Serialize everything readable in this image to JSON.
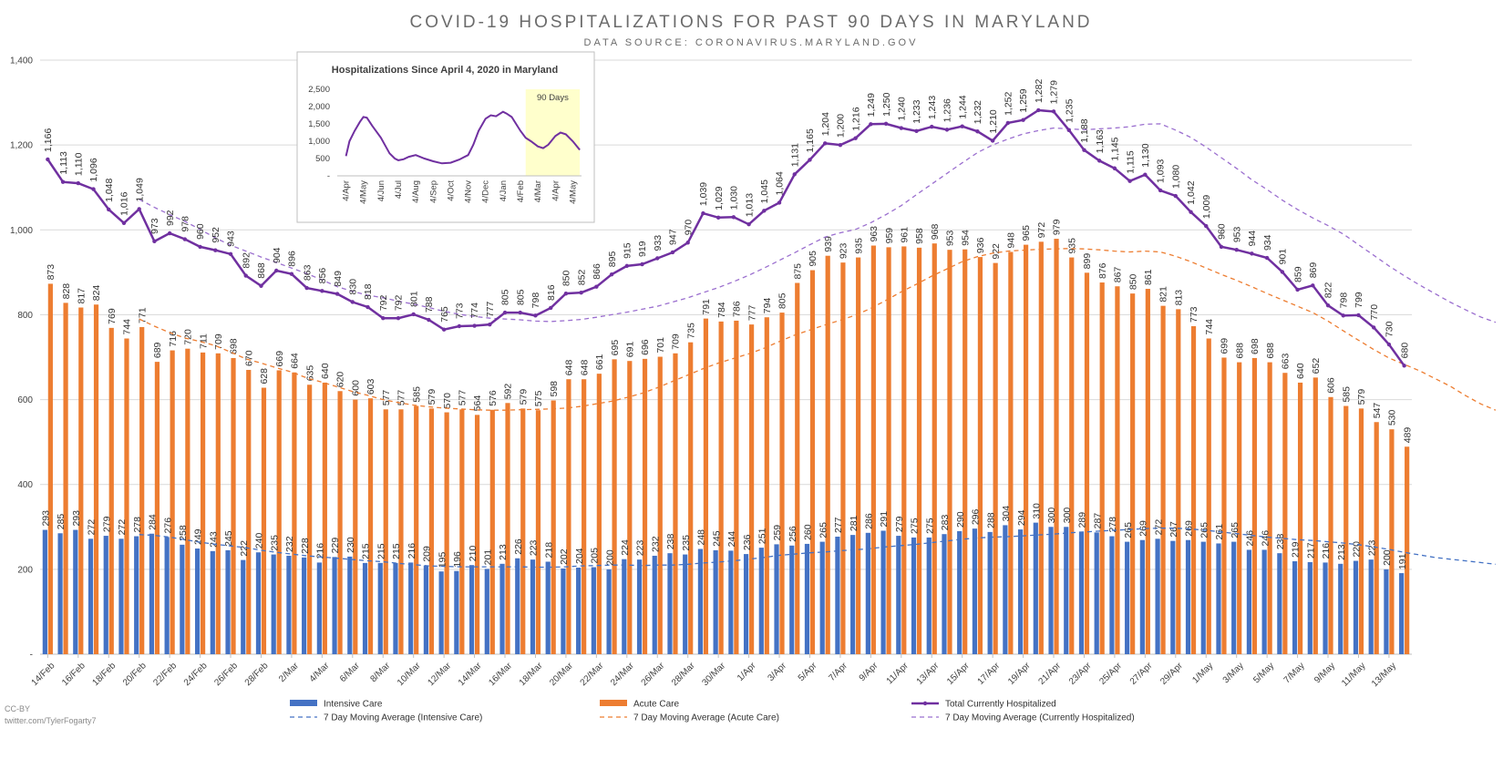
{
  "title": "COVID-19 HOSPITALIZATIONS FOR PAST 90 DAYS IN MARYLAND",
  "subtitle": "DATA SOURCE: CORONAVIRUS.MARYLAND.GOV",
  "credit_line1": "CC-BY",
  "credit_line2": "twitter.com/TylerFogarty7",
  "colors": {
    "intensive": "#4472C4",
    "acute": "#ED7D31",
    "total": "#7030A0",
    "total_ma": "#9B6FCF",
    "grid": "#d9d9d9"
  },
  "legend": [
    {
      "label": "Intensive Care",
      "kind": "bar",
      "color": "#4472C4"
    },
    {
      "label": "Acute Care",
      "kind": "bar",
      "color": "#ED7D31"
    },
    {
      "label": "Total Currently Hospitalized",
      "kind": "line-marker",
      "color": "#7030A0"
    },
    {
      "label": "7 Day Moving Average (Intensive Care)",
      "kind": "dash",
      "color": "#4472C4"
    },
    {
      "label": "7 Day Moving Average (Acute Care)",
      "kind": "dash",
      "color": "#ED7D31"
    },
    {
      "label": "7 Day Moving Average (Currently Hospitalized)",
      "kind": "dash",
      "color": "#9B6FCF"
    }
  ],
  "chart_data": [
    {
      "type": "bar",
      "title": "COVID-19 HOSPITALIZATIONS FOR PAST 90 DAYS IN MARYLAND",
      "subtitle": "DATA SOURCE: CORONAVIRUS.MARYLAND.GOV",
      "xlabel": "",
      "ylabel": "",
      "ylim": [
        0,
        1400
      ],
      "yticks": [
        0,
        200,
        400,
        600,
        800,
        1000,
        1200,
        1400
      ],
      "ytick_labels": [
        "-",
        "200",
        "400",
        "600",
        "800",
        "1,000",
        "1,200",
        "1,400"
      ],
      "grid": true,
      "legend_position": "bottom",
      "x_tick_labels": [
        "14/Feb",
        "16/Feb",
        "18/Feb",
        "20/Feb",
        "22/Feb",
        "24/Feb",
        "26/Feb",
        "28/Feb",
        "2/Mar",
        "4/Mar",
        "6/Mar",
        "8/Mar",
        "10/Mar",
        "12/Mar",
        "14/Mar",
        "16/Mar",
        "18/Mar",
        "20/Mar",
        "22/Mar",
        "24/Mar",
        "26/Mar",
        "28/Mar",
        "30/Mar",
        "1/Apr",
        "3/Apr",
        "5/Apr",
        "7/Apr",
        "9/Apr",
        "11/Apr",
        "13/Apr",
        "15/Apr",
        "17/Apr",
        "19/Apr",
        "21/Apr",
        "23/Apr",
        "25/Apr",
        "27/Apr",
        "29/Apr",
        "1/May",
        "3/May",
        "5/May",
        "7/May",
        "9/May",
        "11/May",
        "13/May"
      ],
      "series": [
        {
          "name": "Intensive Care",
          "kind": "bar",
          "values": [
            293,
            285,
            293,
            272,
            279,
            272,
            278,
            284,
            276,
            258,
            249,
            243,
            245,
            222,
            240,
            235,
            232,
            228,
            216,
            229,
            230,
            215,
            215,
            215,
            216,
            209,
            195,
            196,
            210,
            201,
            213,
            226,
            223,
            218,
            202,
            204,
            205,
            200,
            224,
            223,
            232,
            238,
            235,
            248,
            245,
            244,
            236,
            251,
            259,
            256,
            260,
            265,
            277,
            281,
            286,
            291,
            279,
            275,
            275,
            283,
            290,
            296,
            288,
            304,
            294,
            310,
            300,
            300,
            289,
            287,
            278,
            265,
            269,
            272,
            267,
            269,
            265,
            261,
            265,
            246,
            246,
            238,
            219,
            217,
            216,
            213,
            220,
            223,
            200,
            191
          ]
        },
        {
          "name": "Acute Care",
          "kind": "bar",
          "values": [
            873,
            828,
            817,
            824,
            769,
            744,
            771,
            689,
            716,
            720,
            711,
            709,
            698,
            670,
            628,
            669,
            664,
            635,
            640,
            620,
            600,
            603,
            577,
            577,
            585,
            579,
            570,
            577,
            564,
            576,
            592,
            579,
            575,
            598,
            648,
            648,
            661,
            695,
            691,
            696,
            701,
            709,
            735,
            791,
            784,
            786,
            777,
            794,
            805,
            875,
            905,
            939,
            923,
            935,
            963,
            959,
            961,
            958,
            968,
            953,
            954,
            936,
            922,
            948,
            965,
            972,
            979,
            935,
            899,
            876,
            867,
            850,
            861,
            821,
            813,
            773,
            744,
            699,
            688,
            698,
            688,
            663,
            640,
            652,
            606,
            585,
            579,
            547,
            530,
            489
          ]
        },
        {
          "name": "Total Currently Hospitalized",
          "kind": "line",
          "values": [
            1166,
            1113,
            1110,
            1096,
            1048,
            1016,
            1049,
            973,
            992,
            978,
            960,
            952,
            943,
            892,
            868,
            904,
            896,
            863,
            856,
            849,
            830,
            818,
            792,
            792,
            801,
            788,
            765,
            773,
            774,
            777,
            805,
            805,
            798,
            816,
            850,
            852,
            866,
            895,
            915,
            919,
            933,
            947,
            970,
            1039,
            1029,
            1030,
            1013,
            1045,
            1064,
            1131,
            1165,
            1204,
            1200,
            1216,
            1249,
            1250,
            1240,
            1233,
            1243,
            1236,
            1244,
            1232,
            1210,
            1252,
            1259,
            1282,
            1279,
            1235,
            1188,
            1163,
            1145,
            1115,
            1130,
            1093,
            1080,
            1042,
            1009,
            960,
            953,
            944,
            934,
            901,
            859,
            869,
            822,
            798,
            799,
            770,
            730,
            680
          ]
        },
        {
          "name": "7 Day Moving Average (Intensive Care)",
          "kind": "dashed-line",
          "start_index": 6,
          "values": [
            282,
            280,
            276,
            270,
            264,
            259,
            255,
            251,
            245,
            240,
            236,
            232,
            229,
            226,
            223,
            220,
            218,
            214,
            211,
            208,
            207,
            206,
            206,
            206,
            206,
            206,
            205,
            205,
            206,
            208,
            209,
            210,
            210,
            209,
            210,
            210,
            212,
            215,
            217,
            220,
            224,
            228,
            233,
            236,
            239,
            241,
            244,
            246,
            249,
            253,
            256,
            259,
            263,
            267,
            271,
            274,
            276,
            277,
            279,
            281,
            283,
            286,
            288,
            290,
            292,
            294,
            296,
            297,
            297,
            295,
            292,
            288,
            284,
            280,
            276,
            273,
            270,
            268,
            265,
            262,
            258,
            253,
            247,
            240,
            234,
            228,
            224,
            220,
            216,
            212
          ]
        },
        {
          "name": "7 Day Moving Average (Acute Care)",
          "kind": "dashed-line",
          "start_index": 6,
          "values": [
            790,
            773,
            758,
            745,
            737,
            727,
            712,
            696,
            686,
            675,
            665,
            651,
            641,
            630,
            619,
            610,
            600,
            593,
            587,
            583,
            580,
            578,
            576,
            575,
            575,
            576,
            577,
            578,
            580,
            584,
            590,
            596,
            605,
            615,
            628,
            643,
            658,
            673,
            686,
            697,
            708,
            721,
            737,
            752,
            764,
            776,
            787,
            799,
            815,
            834,
            854,
            872,
            891,
            908,
            925,
            937,
            945,
            950,
            952,
            954,
            955,
            956,
            955,
            953,
            950,
            948,
            950,
            948,
            938,
            925,
            910,
            895,
            881,
            866,
            850,
            835,
            820,
            805,
            785,
            762,
            740,
            718,
            698,
            683,
            668,
            650,
            632,
            610,
            590,
            575
          ]
        },
        {
          "name": "7 Day Moving Average (Currently Hospitalized)",
          "kind": "dashed-line",
          "start_index": 6,
          "values": [
            1072,
            1053,
            1036,
            1020,
            1001,
            981,
            964,
            950,
            936,
            923,
            910,
            897,
            882,
            866,
            855,
            846,
            840,
            832,
            825,
            817,
            808,
            801,
            796,
            792,
            790,
            788,
            785,
            784,
            786,
            789,
            794,
            800,
            806,
            813,
            820,
            830,
            840,
            852,
            864,
            878,
            893,
            910,
            928,
            946,
            965,
            983,
            993,
            1001,
            1017,
            1036,
            1057,
            1083,
            1108,
            1133,
            1158,
            1182,
            1200,
            1214,
            1226,
            1234,
            1240,
            1238,
            1236,
            1238,
            1240,
            1243,
            1249,
            1250,
            1235,
            1218,
            1195,
            1170,
            1145,
            1118,
            1095,
            1070,
            1048,
            1028,
            1010,
            990,
            965,
            940,
            915,
            892,
            870,
            850,
            830,
            812,
            795,
            782
          ]
        }
      ]
    },
    {
      "type": "line",
      "title": "Hospitalizations Since April 4, 2020 in Maryland",
      "ylim": [
        0,
        2500
      ],
      "yticks": [
        0,
        500,
        1000,
        1500,
        2000,
        2500
      ],
      "ytick_labels": [
        "-",
        "500",
        "1,000",
        "1,500",
        "2,000",
        "2,500"
      ],
      "x_tick_labels": [
        "4/Apr",
        "4/May",
        "4/Jun",
        "4/Jul",
        "4/Aug",
        "4/Sep",
        "4/Oct",
        "4/Nov",
        "4/Dec",
        "4/Jan",
        "4/Feb",
        "4/Mar",
        "4/Apr",
        "4/May"
      ],
      "highlight_label": "90 Days",
      "highlight_range": [
        10.3,
        13.4
      ],
      "series": [
        {
          "name": "Total Currently Hospitalized",
          "x": [
            0,
            0.2,
            0.5,
            0.8,
            1,
            1.2,
            1.5,
            2,
            2.5,
            2.8,
            3,
            3.3,
            3.6,
            4,
            4.5,
            5,
            5.5,
            6,
            6.5,
            7,
            7.3,
            7.6,
            8,
            8.3,
            8.6,
            9,
            9.2,
            9.5,
            10,
            10.3,
            10.6,
            11,
            11.3,
            11.6,
            12,
            12.3,
            12.6,
            13,
            13.4
          ],
          "values": [
            570,
            1000,
            1300,
            1560,
            1700,
            1680,
            1450,
            1100,
            650,
            500,
            450,
            480,
            550,
            600,
            500,
            420,
            360,
            380,
            470,
            600,
            900,
            1300,
            1650,
            1750,
            1720,
            1850,
            1800,
            1700,
            1300,
            1100,
            1000,
            850,
            800,
            900,
            1150,
            1250,
            1200,
            1000,
            750
          ]
        }
      ]
    }
  ]
}
